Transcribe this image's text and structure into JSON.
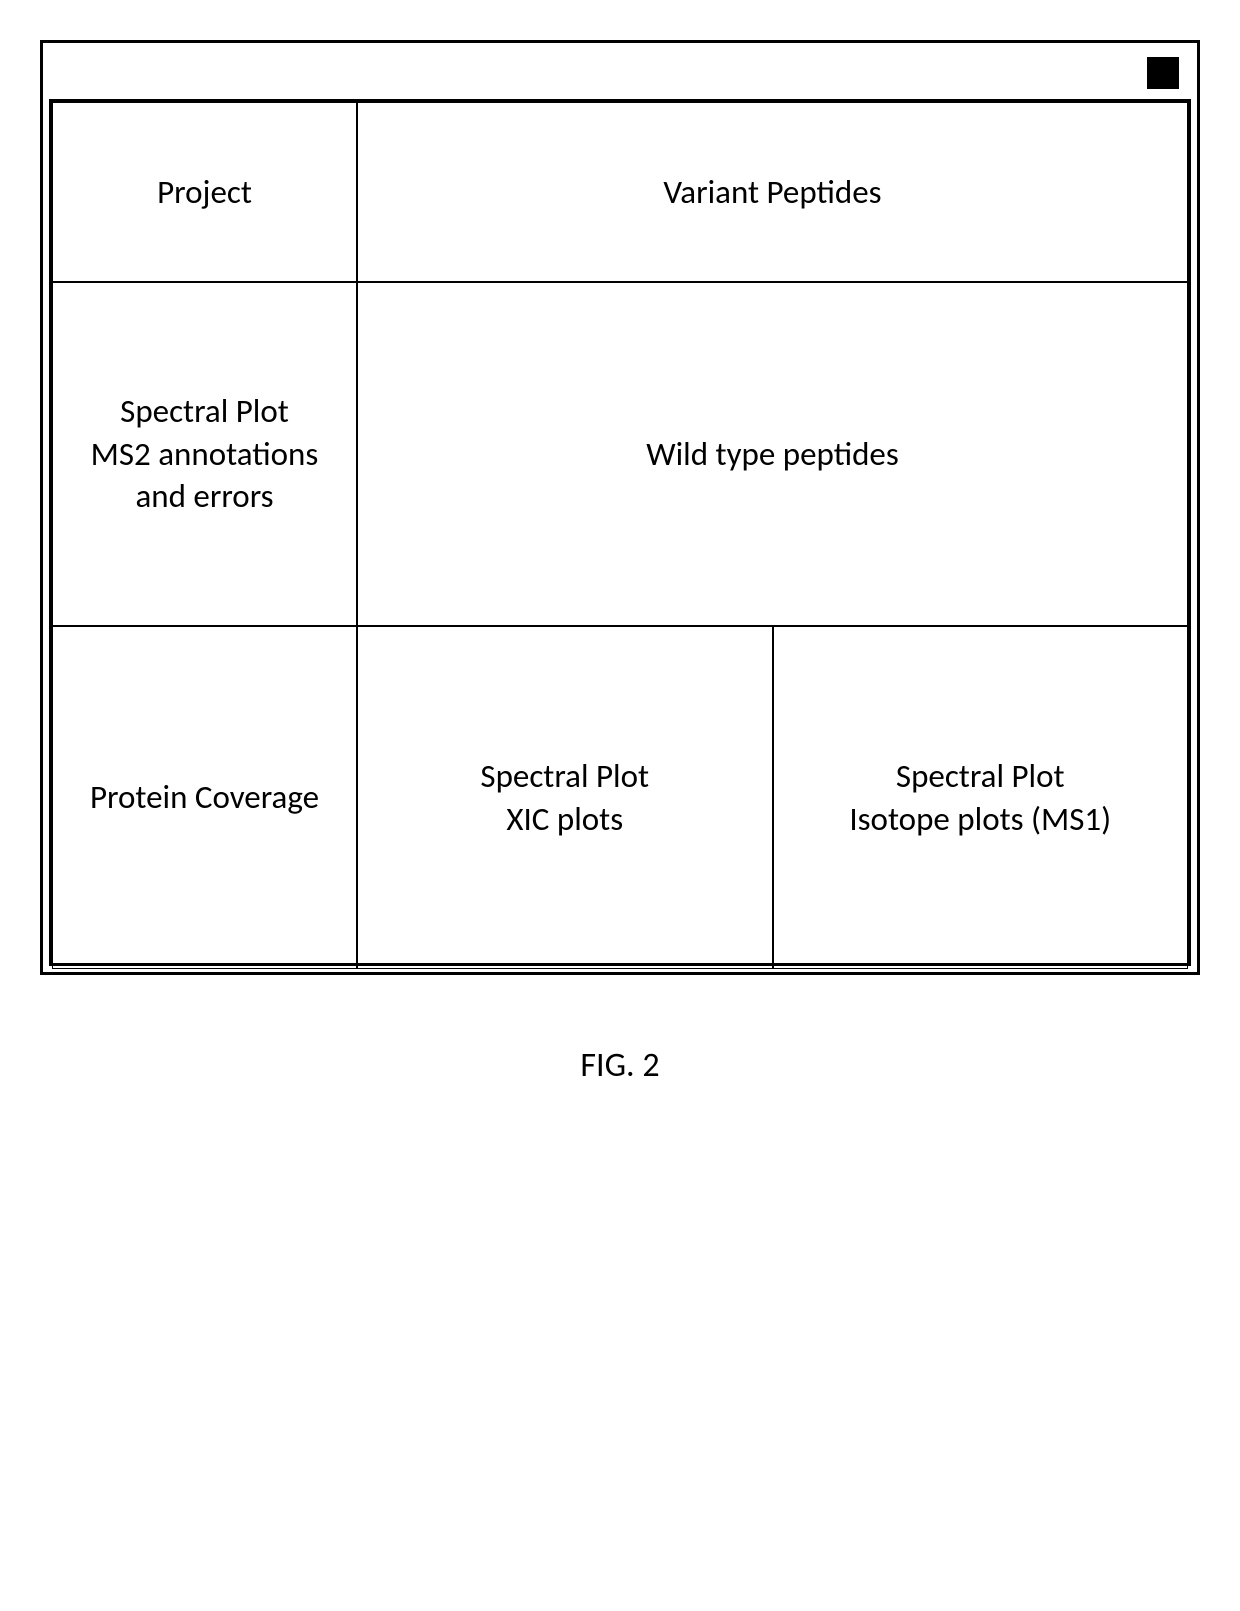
{
  "panels": {
    "project": "Project",
    "variant": "Variant Peptides",
    "ms2": {
      "line1": "Spectral Plot",
      "line2": "MS2 annotations",
      "line3": "and errors"
    },
    "wildtype": "Wild type peptides",
    "coverage": "Protein Coverage",
    "xic": {
      "line1": "Spectral Plot",
      "line2": "XIC plots"
    },
    "isotope": {
      "line1": "Spectral Plot",
      "line2": "Isotope plots (MS1)"
    }
  },
  "caption": "FIG. 2",
  "style": {
    "border_color": "#000000",
    "background": "#ffffff",
    "font_size_panel": 33,
    "font_size_caption": 34
  }
}
